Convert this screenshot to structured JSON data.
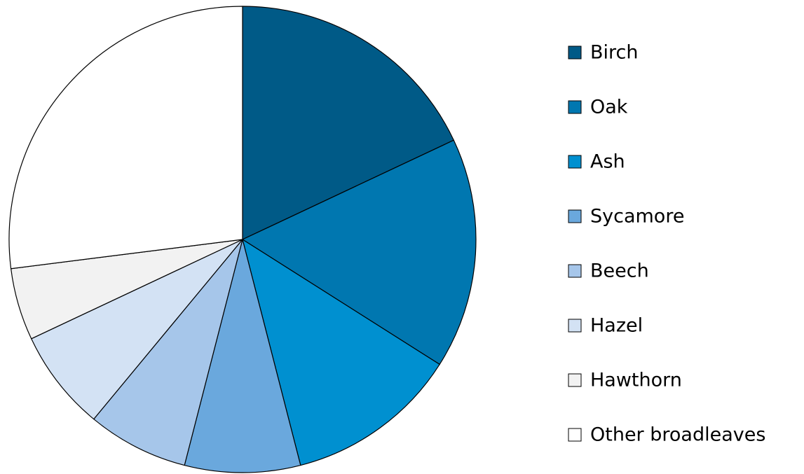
{
  "chart_data": {
    "type": "pie",
    "categories": [
      "Birch",
      "Oak",
      "Ash",
      "Sycamore",
      "Beech",
      "Hazel",
      "Hawthorn",
      "Other broadleaves"
    ],
    "values": [
      18,
      16,
      12,
      8,
      7,
      7,
      5,
      27
    ],
    "colors": [
      "#005a87",
      "#0077b0",
      "#0090d0",
      "#6aa8dd",
      "#a6c6ea",
      "#d3e2f4",
      "#f2f2f2",
      "#ffffff"
    ],
    "legend": "right"
  }
}
